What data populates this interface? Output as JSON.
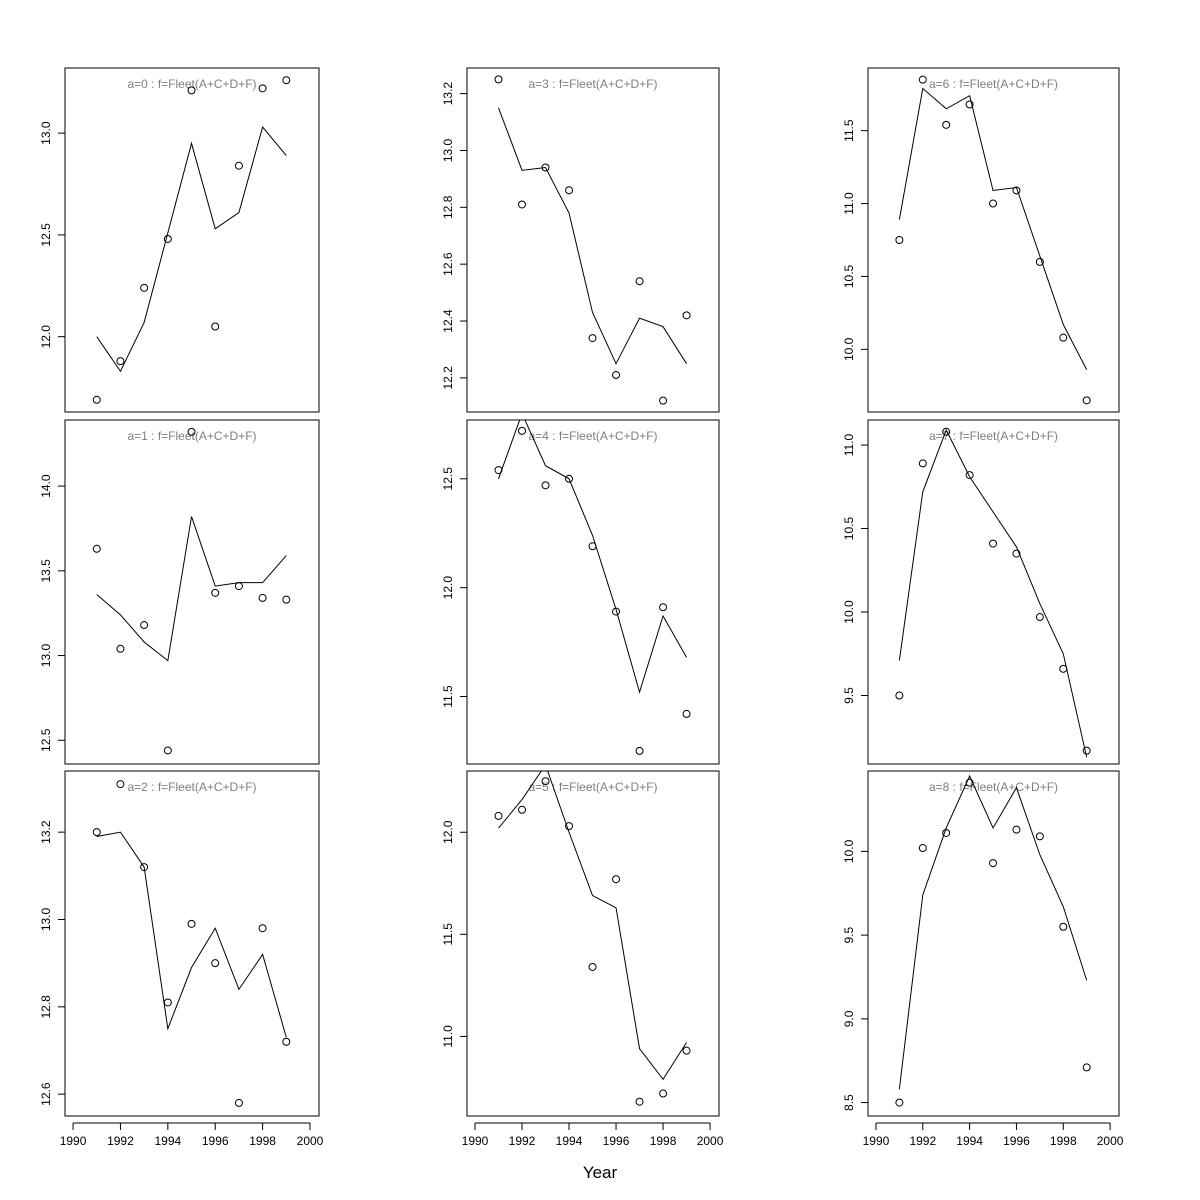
{
  "chart_data": {
    "type": "scatter+line",
    "xlabel": "Year",
    "xticks": [
      1990,
      1992,
      1994,
      1996,
      1998,
      2000
    ],
    "xlim": [
      1989.66,
      2000.38
    ],
    "x": [
      1991,
      1992,
      1993,
      1994,
      1995,
      1996,
      1997,
      1998,
      1999
    ],
    "panels": [
      {
        "title": "a=0  :  f=Fleet(A+C+D+F)",
        "ylim": [
          11.63,
          13.32
        ],
        "yticks": [
          "12.0",
          "12.5",
          "13.0"
        ],
        "points": [
          11.69,
          11.88,
          12.24,
          12.48,
          13.21,
          12.05,
          12.84,
          13.22,
          13.26
        ],
        "line": [
          12.0,
          11.83,
          12.07,
          12.51,
          12.95,
          12.53,
          12.61,
          13.03,
          12.89
        ]
      },
      {
        "title": "a=3  :  f=Fleet(A+C+D+F)",
        "ylim": [
          12.08,
          13.29
        ],
        "yticks": [
          "12.2",
          "12.4",
          "12.6",
          "12.8",
          "13.0",
          "13.2"
        ],
        "points": [
          13.25,
          12.81,
          12.94,
          12.86,
          12.34,
          12.21,
          12.54,
          12.12,
          12.42
        ],
        "line": [
          13.15,
          12.93,
          12.94,
          12.78,
          12.43,
          12.25,
          12.41,
          12.38,
          12.25
        ]
      },
      {
        "title": "a=6  :  f=Fleet(A+C+D+F)",
        "ylim": [
          9.57,
          11.93
        ],
        "yticks": [
          "10.0",
          "10.5",
          "11.0",
          "11.5"
        ],
        "points": [
          10.75,
          11.85,
          11.54,
          11.68,
          11.0,
          11.09,
          10.6,
          10.08,
          9.65
        ],
        "line": [
          10.89,
          11.79,
          11.65,
          11.74,
          11.09,
          11.11,
          10.64,
          10.17,
          9.86
        ]
      },
      {
        "title": "a=1  :  f=Fleet(A+C+D+F)",
        "ylim": [
          12.36,
          14.39
        ],
        "yticks": [
          "12.5",
          "13.0",
          "13.5",
          "14.0"
        ],
        "points": [
          13.63,
          13.04,
          13.18,
          12.44,
          14.32,
          13.37,
          13.41,
          13.34,
          13.33
        ],
        "line": [
          13.36,
          13.24,
          13.08,
          12.97,
          13.82,
          13.41,
          13.43,
          13.43,
          13.59
        ]
      },
      {
        "title": "a=4  :  f=Fleet(A+C+D+F)",
        "ylim": [
          11.19,
          12.77
        ],
        "yticks": [
          "11.5",
          "12.0",
          "12.5"
        ],
        "points": [
          12.54,
          12.72,
          12.47,
          12.5,
          12.19,
          11.89,
          11.25,
          11.91,
          11.42
        ],
        "line": [
          12.5,
          12.8,
          12.56,
          12.5,
          12.24,
          11.9,
          11.52,
          11.87,
          11.68
        ]
      },
      {
        "title": "a=7  :  f=Fleet(A+C+D+F)",
        "ylim": [
          9.09,
          11.15
        ],
        "yticks": [
          "9.5",
          "10.0",
          "10.5",
          "11.0"
        ],
        "points": [
          9.5,
          10.89,
          11.08,
          10.82,
          10.41,
          10.35,
          9.97,
          9.66,
          9.17
        ],
        "line": [
          9.71,
          10.72,
          11.09,
          10.81,
          10.6,
          10.39,
          10.05,
          9.75,
          9.13
        ]
      },
      {
        "title": "a=2  :  f=Fleet(A+C+D+F)",
        "ylim": [
          12.55,
          13.34
        ],
        "yticks": [
          "12.6",
          "12.8",
          "13.0",
          "13.2"
        ],
        "points": [
          13.2,
          13.31,
          13.12,
          12.81,
          12.99,
          12.9,
          12.58,
          12.98,
          12.72
        ],
        "line": [
          13.19,
          13.2,
          13.12,
          12.75,
          12.89,
          12.98,
          12.84,
          12.92,
          12.73
        ]
      },
      {
        "title": "a=5  :  f=Fleet(A+C+D+F)",
        "ylim": [
          10.61,
          12.3
        ],
        "yticks": [
          "11.0",
          "11.5",
          "12.0"
        ],
        "points": [
          12.08,
          12.11,
          12.25,
          12.03,
          11.34,
          11.77,
          10.68,
          10.72,
          10.93
        ],
        "line": [
          12.02,
          12.16,
          12.33,
          12.0,
          11.69,
          11.63,
          10.94,
          10.79,
          10.97
        ]
      },
      {
        "title": "a=8  :  f=Fleet(A+C+D+F)",
        "ylim": [
          8.42,
          10.48
        ],
        "yticks": [
          "8.5",
          "9.0",
          "9.5",
          "10.0"
        ],
        "points": [
          8.5,
          10.02,
          10.11,
          10.41,
          9.93,
          10.13,
          10.09,
          9.55,
          8.71
        ],
        "line": [
          8.58,
          9.74,
          10.14,
          10.45,
          10.14,
          10.38,
          9.98,
          9.67,
          9.23
        ]
      }
    ]
  }
}
